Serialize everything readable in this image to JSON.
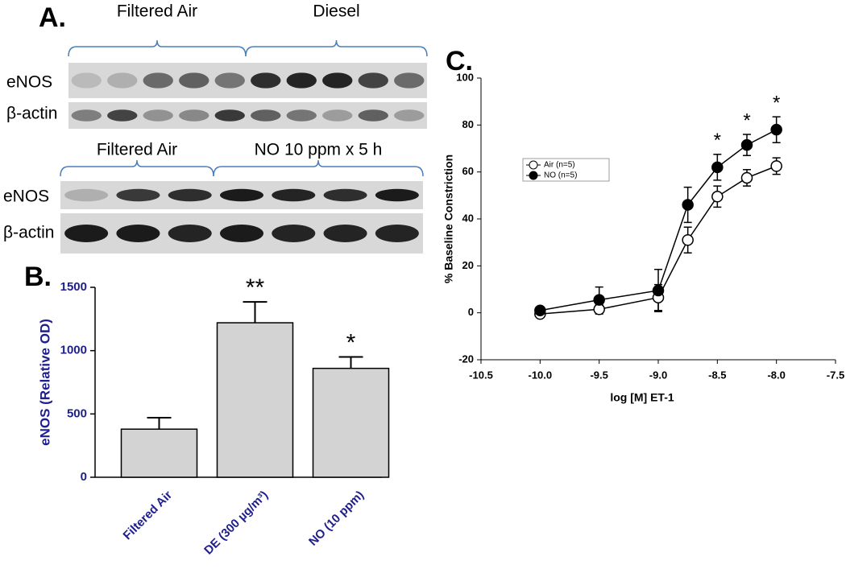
{
  "panel_a": {
    "panel_label": "A.",
    "blots": [
      {
        "groups": [
          "Filtered Air",
          "Diesel"
        ],
        "rows": [
          "eNOS",
          "β-actin"
        ]
      },
      {
        "groups": [
          "Filtered Air",
          "NO 10 ppm x 5 h"
        ],
        "rows": [
          "eNOS",
          "β-actin"
        ]
      }
    ]
  },
  "chart_data": [
    {
      "type": "bar",
      "panel_label": "B.",
      "y_label": "eNOS (Relative OD)",
      "categories": [
        "Filtered Air",
        "DE (300 µg/m³)",
        "NO (10 ppm)"
      ],
      "values": [
        380,
        1220,
        860
      ],
      "errors": [
        90,
        165,
        90
      ],
      "value_annotations": [
        null,
        "**",
        "*"
      ],
      "color": "#d3d3d3",
      "ylim": [
        0,
        1500
      ],
      "yticks": [
        0,
        500,
        1000,
        1500
      ]
    },
    {
      "type": "line",
      "panel_label": "C.",
      "x_label": "log [M] ET-1",
      "y_label": "% Baseline Constriction",
      "x": [
        -10,
        -9.5,
        -9,
        -8.75,
        -8.5,
        -8.25,
        -8
      ],
      "series": [
        {
          "name": "Air (n=5)",
          "color": "#ffffff",
          "values": [
            -0.5,
            1.5,
            6.5,
            31,
            49.5,
            57.5,
            62.5
          ],
          "errors": [
            1,
            2,
            5.5,
            5.5,
            4.5,
            3.5,
            3.5
          ]
        },
        {
          "name": "NO (n=5)",
          "color": "#000000",
          "values": [
            1,
            5.5,
            9.5,
            46,
            62,
            71.5,
            78
          ],
          "errors": [
            1,
            5.5,
            9,
            7.5,
            5.5,
            4.5,
            5.5
          ]
        }
      ],
      "annotations": [
        {
          "x": -8.5,
          "text": "*"
        },
        {
          "x": -8.25,
          "text": "*"
        },
        {
          "x": -8,
          "text": "*"
        }
      ],
      "legend": "upper left",
      "xlim": [
        -10.5,
        -7.5
      ],
      "xticks": [
        {
          "value": -10.5,
          "label": "-10.5"
        },
        {
          "value": -10,
          "label": "-10.0"
        },
        {
          "value": -9.5,
          "label": "-9.5"
        },
        {
          "value": -9,
          "label": "-9.0"
        },
        {
          "value": -8.5,
          "label": "-8.5"
        },
        {
          "value": -8,
          "label": "-8.0"
        },
        {
          "value": -7.5,
          "label": "-7.5"
        }
      ],
      "ylim": [
        -20,
        100
      ],
      "yticks": [
        -20,
        0,
        20,
        40,
        60,
        80,
        100
      ]
    }
  ]
}
